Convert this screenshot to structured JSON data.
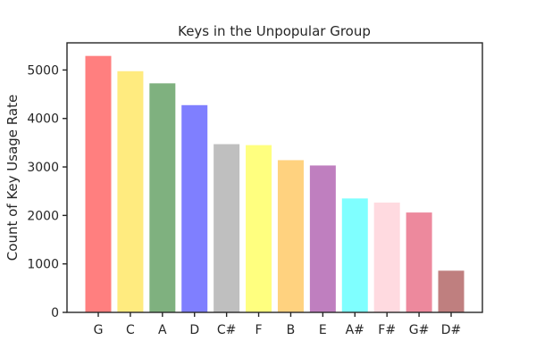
{
  "chart_data": {
    "type": "bar",
    "title": "Keys in the Unpopular Group",
    "xlabel": "",
    "ylabel": "Count of Key Usage Rate",
    "categories": [
      "G",
      "C",
      "A",
      "D",
      "C#",
      "F",
      "B",
      "E",
      "A#",
      "F#",
      "G#",
      "D#"
    ],
    "values": [
      5290,
      4975,
      4725,
      4275,
      3470,
      3450,
      3140,
      3030,
      2350,
      2265,
      2060,
      860
    ],
    "colors": [
      "#ff0000",
      "#ffd700",
      "#006400",
      "#0000ff",
      "#808080",
      "#ffff00",
      "#ffa500",
      "#800080",
      "#00ffff",
      "#ffb6c1",
      "#dc143c",
      "#800000"
    ],
    "bar_opacity": 0.5,
    "ylim": [
      0,
      5560
    ],
    "yticks": [
      0,
      1000,
      2000,
      3000,
      4000,
      5000
    ],
    "grid": false,
    "legend": "none"
  }
}
